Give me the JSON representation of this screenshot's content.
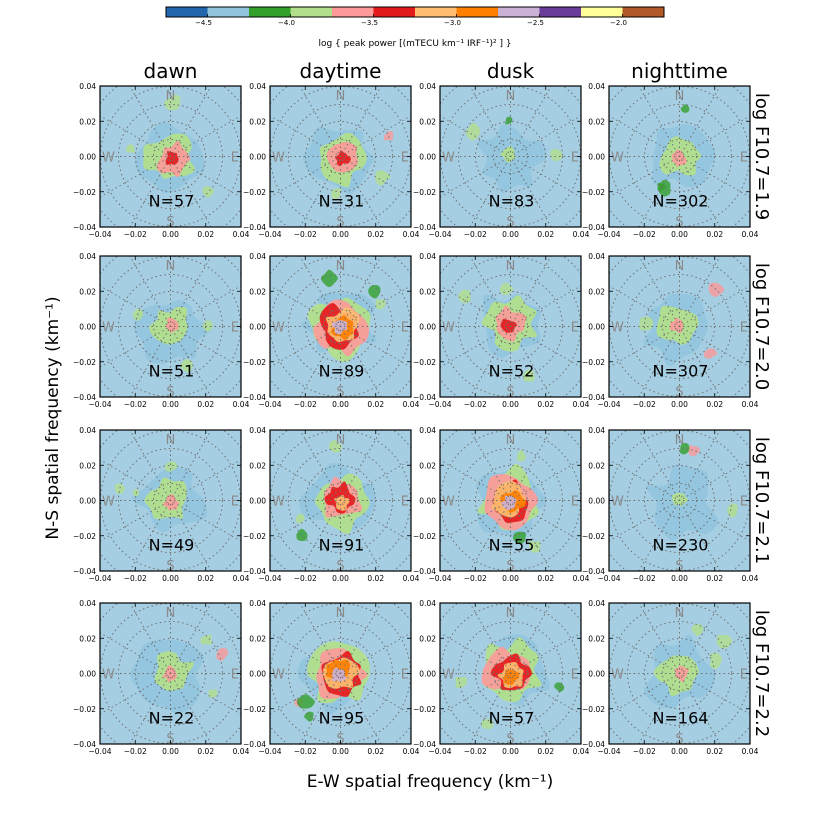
{
  "chart_data": {
    "type": "heatmap",
    "colorbar": {
      "label": "log { peak power [(mTECU km⁻¹ IRF⁻¹)² ] }",
      "min": -4.75,
      "max": -1.75,
      "ticks": [
        -4.5,
        -4.0,
        -3.5,
        -3.0,
        -2.5,
        -2.0
      ],
      "tick_labels": [
        "−4.5",
        "−4.0",
        "−3.5",
        "−3.0",
        "−2.5",
        "−2.0"
      ],
      "colors": [
        "#2166ac",
        "#92c5de",
        "#33a02c",
        "#b2df8a",
        "#fb9a99",
        "#e31a1c",
        "#fdbf6f",
        "#ff7f00",
        "#cab2d6",
        "#6a3d9a",
        "#ffff99",
        "#b15928"
      ]
    },
    "columns": [
      "dawn",
      "daytime",
      "dusk",
      "nighttime"
    ],
    "rows": [
      "log F10.7=1.9",
      "log F10.7=2.0",
      "log F10.7=2.1",
      "log F10.7=2.2"
    ],
    "xlabel": "E-W spatial frequency (km⁻¹)",
    "ylabel": "N-S spatial frequency (km⁻¹)",
    "xlim": [
      -0.04,
      0.04
    ],
    "ylim": [
      -0.04,
      0.04
    ],
    "ticks": [
      -0.04,
      -0.02,
      0.0,
      0.02,
      0.04
    ],
    "tick_labels": [
      "−0.04",
      "−0.02",
      "0.00",
      "0.02",
      "0.04"
    ],
    "compass": [
      "N",
      "S",
      "W",
      "E"
    ],
    "counts": [
      [
        "N=57",
        "N=31",
        "N=83",
        "N=302"
      ],
      [
        "N=51",
        "N=89",
        "N=52",
        "N=307"
      ],
      [
        "N=49",
        "N=91",
        "N=55",
        "N=230"
      ],
      [
        "N=22",
        "N=95",
        "N=57",
        "N=164"
      ]
    ],
    "peak_level": [
      [
        -3.4,
        -3.2,
        -3.8,
        -3.5
      ],
      [
        -3.7,
        -2.5,
        -3.4,
        -3.7
      ],
      [
        -3.6,
        -2.9,
        -2.5,
        -3.8
      ],
      [
        -3.5,
        -2.4,
        -2.6,
        -3.5
      ]
    ],
    "background_color": "#a6cee3"
  }
}
